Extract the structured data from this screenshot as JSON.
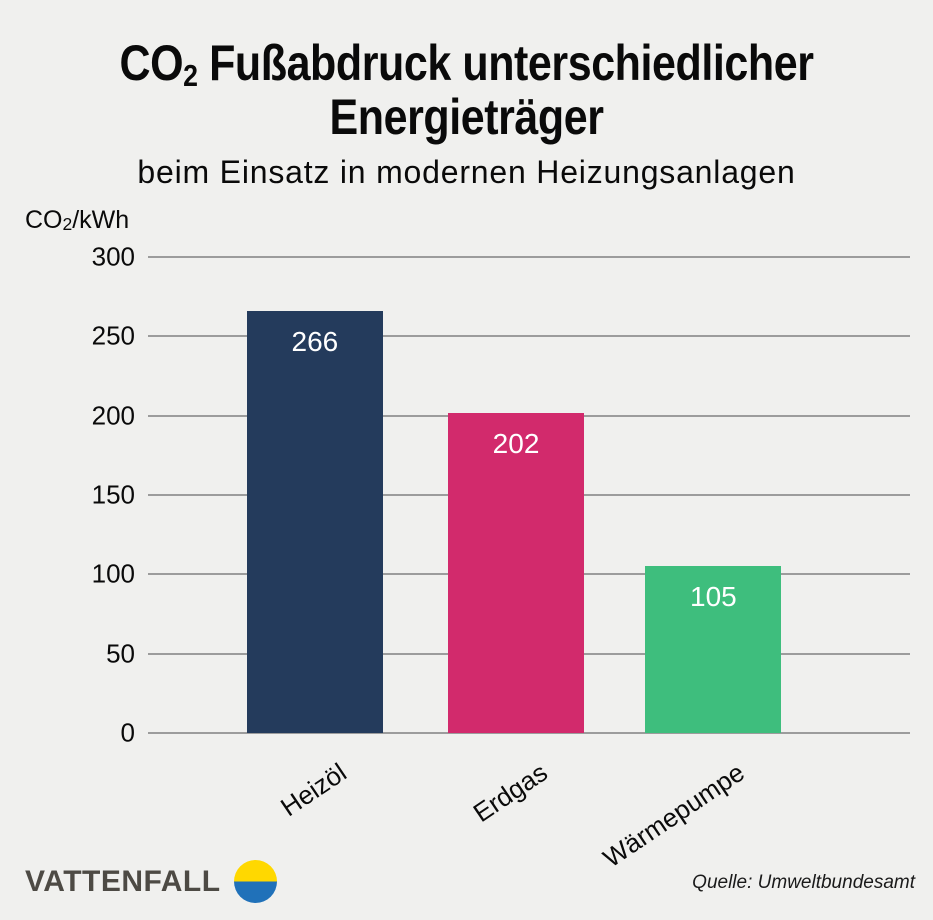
{
  "title": {
    "co": "CO",
    "sub": "2",
    "rest": " Fußabdruck unterschiedlicher",
    "line2": "Energieträger"
  },
  "subtitle": "beim Einsatz in modernen Heizungsanlagen",
  "chart_data": {
    "type": "bar",
    "title": "CO2 Fußabdruck unterschiedlicher Energieträger",
    "subtitle": "beim Einsatz in modernen Heizungsanlagen",
    "ylabel": "CO2/kWh",
    "ylabel_parts": {
      "pre": "CO",
      "sub": "2",
      "post": "/kWh"
    },
    "categories": [
      "Heizöl",
      "Erdgas",
      "Wärmepumpe"
    ],
    "values": [
      266,
      202,
      105
    ],
    "bar_colors": [
      "#243b5c",
      "#d22a6c",
      "#3ebe7d"
    ],
    "value_label_color": "#ffffff",
    "ylim": [
      0,
      300
    ],
    "yticks": [
      300,
      250,
      200,
      150,
      100,
      50,
      0
    ],
    "grid": true,
    "gridline_color": "#9c9c9c",
    "background_color": "#f0f0ee",
    "source": "Quelle: Umweltbundesamt"
  },
  "footer": {
    "brand": "VATTENFALL",
    "brand_color": "#4d4a44",
    "logo_top_color": "#ffd800",
    "logo_bottom_color": "#2071b9",
    "source": "Quelle: Umweltbundesamt"
  }
}
